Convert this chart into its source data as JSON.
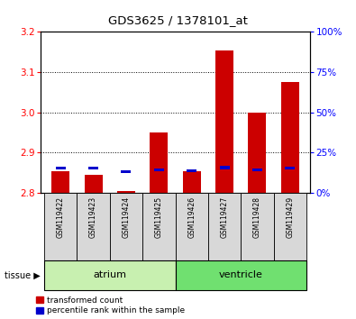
{
  "title": "GDS3625 / 1378101_at",
  "samples": [
    "GSM119422",
    "GSM119423",
    "GSM119424",
    "GSM119425",
    "GSM119426",
    "GSM119427",
    "GSM119428",
    "GSM119429"
  ],
  "red_values": [
    2.855,
    2.845,
    2.805,
    2.95,
    2.855,
    3.155,
    3.0,
    3.075
  ],
  "blue_values": [
    2.862,
    2.861,
    2.852,
    2.858,
    2.856,
    2.863,
    2.858,
    2.862
  ],
  "ylim_left": [
    2.8,
    3.2
  ],
  "ylim_right": [
    0,
    100
  ],
  "yticks_left": [
    2.8,
    2.9,
    3.0,
    3.1,
    3.2
  ],
  "yticks_right": [
    0,
    25,
    50,
    75,
    100
  ],
  "ytick_labels_right": [
    "0%",
    "25%",
    "50%",
    "75%",
    "100%"
  ],
  "groups": [
    {
      "label": "atrium",
      "start": 0,
      "end": 4,
      "color": "#c8f0b0"
    },
    {
      "label": "ventricle",
      "start": 4,
      "end": 8,
      "color": "#70e070"
    }
  ],
  "tissue_label": "tissue",
  "red_color": "#cc0000",
  "blue_color": "#0000cc",
  "bar_width": 0.55,
  "base_value": 2.8,
  "legend_red": "transformed count",
  "legend_blue": "percentile rank within the sample",
  "sample_bg_color": "#d8d8d8",
  "grid_color": "#000000",
  "title_color": "#000000"
}
